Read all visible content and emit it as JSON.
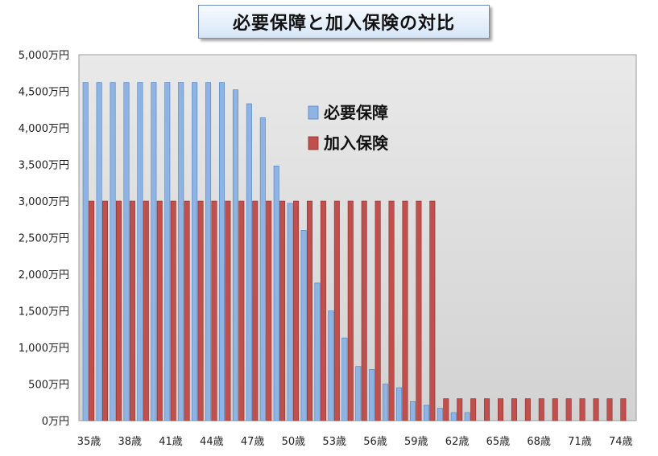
{
  "chart_data": {
    "type": "bar",
    "title": "必要保障と加入保険の対比",
    "ylim": [
      0,
      5000
    ],
    "y_ticks": [
      "0万円",
      "500万円",
      "1,000万円",
      "1,500万円",
      "2,000万円",
      "2,500万円",
      "3,000万円",
      "3,500万円",
      "4,000万円",
      "4,500万円",
      "5,000万円"
    ],
    "y_tick_values": [
      0,
      500,
      1000,
      1500,
      2000,
      2500,
      3000,
      3500,
      4000,
      4500,
      5000
    ],
    "categories": [
      35,
      36,
      37,
      38,
      39,
      40,
      41,
      42,
      43,
      44,
      45,
      46,
      47,
      48,
      49,
      50,
      51,
      52,
      53,
      54,
      55,
      56,
      57,
      58,
      59,
      60,
      61,
      62,
      63,
      64,
      65,
      66,
      67,
      68,
      69,
      70,
      71,
      72,
      73,
      74
    ],
    "x_tick_labels": [
      "35歳",
      "38歳",
      "41歳",
      "44歳",
      "47歳",
      "50歳",
      "53歳",
      "56歳",
      "59歳",
      "62歳",
      "65歳",
      "68歳",
      "71歳",
      "74歳"
    ],
    "x_tick_categories": [
      35,
      38,
      41,
      44,
      47,
      50,
      53,
      56,
      59,
      62,
      65,
      68,
      71,
      74
    ],
    "legend_position": "top-center",
    "grid": false,
    "series": [
      {
        "name": "必要保障",
        "color": "#8fb4e3",
        "values": [
          4620,
          4620,
          4620,
          4620,
          4620,
          4620,
          4620,
          4620,
          4620,
          4620,
          4620,
          4520,
          4330,
          4140,
          3480,
          2970,
          2600,
          1880,
          1500,
          1130,
          740,
          700,
          500,
          450,
          260,
          210,
          170,
          110,
          110,
          0,
          0,
          0,
          0,
          0,
          0,
          0,
          0,
          0,
          0,
          0
        ]
      },
      {
        "name": "加入保険",
        "color": "#c0504d",
        "values": [
          3000,
          3000,
          3000,
          3000,
          3000,
          3000,
          3000,
          3000,
          3000,
          3000,
          3000,
          3000,
          3000,
          3000,
          3000,
          3000,
          3000,
          3000,
          3000,
          3000,
          3000,
          3000,
          3000,
          3000,
          3000,
          3000,
          300,
          300,
          300,
          300,
          300,
          300,
          300,
          300,
          300,
          300,
          300,
          300,
          300,
          300
        ]
      }
    ]
  }
}
